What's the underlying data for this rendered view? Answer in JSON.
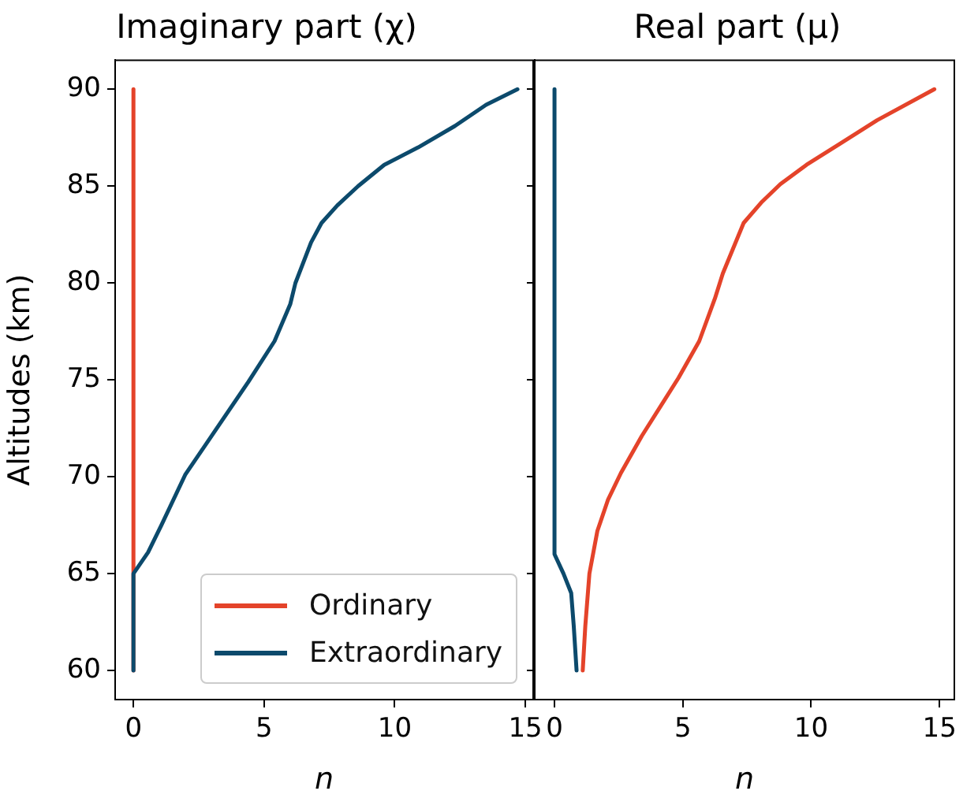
{
  "chart_data": [
    {
      "type": "line",
      "title": "Imaginary part (χ)",
      "xlabel": "n",
      "ylabel": "Altitudes (km)",
      "legend": "bottom right",
      "grid": false,
      "marker": "none",
      "line_style": "solid",
      "xlim": [
        -0.7,
        15.3
      ],
      "xticks": [
        0,
        5,
        10,
        15
      ],
      "ylim": [
        58.5,
        91.5
      ],
      "yticks": [
        60,
        65,
        70,
        75,
        80,
        85,
        90
      ],
      "series": [
        {
          "name": "Ordinary",
          "color": "#e4432a",
          "x": [
            0,
            0
          ],
          "values": [
            60,
            90
          ]
        },
        {
          "name": "Extraordinary",
          "color": "#0c4a6c",
          "x": [
            0,
            0,
            0.56,
            1.07,
            1.98,
            3.39,
            4.4,
            5.4,
            6.0,
            6.2,
            6.8,
            7.2,
            7.8,
            8.6,
            9.6,
            10.9,
            12.3,
            13.5,
            14.7
          ],
          "values": [
            60,
            65,
            66.1,
            67.5,
            70.1,
            72.9,
            74.9,
            77.0,
            78.9,
            80.0,
            82.1,
            83.1,
            84.0,
            85.0,
            86.1,
            87.0,
            88.1,
            89.2,
            90
          ]
        }
      ]
    },
    {
      "type": "line",
      "title": "Real part (μ)",
      "xlabel": "n",
      "legend": false,
      "grid": false,
      "marker": "none",
      "line_style": "solid",
      "tick_labels": "x",
      "xlim": [
        -0.77,
        15.58
      ],
      "xticks": [
        0,
        5,
        10,
        15
      ],
      "ylim": [
        58.5,
        91.5
      ],
      "yticks": [
        60,
        65,
        70,
        75,
        80,
        85,
        90
      ],
      "series": [
        {
          "color": "#e4432a",
          "x": [
            1.1,
            1.2,
            1.36,
            1.67,
            2.08,
            2.59,
            3.4,
            4.83,
            5.64,
            6.25,
            6.56,
            7.37,
            8.09,
            8.8,
            9.82,
            11.14,
            12.57,
            14.8
          ],
          "values": [
            60,
            62.3,
            65,
            67.2,
            68.8,
            70.2,
            72.1,
            75.1,
            77.0,
            79.2,
            80.5,
            83.1,
            84.2,
            85.1,
            86.1,
            87.2,
            88.4,
            90
          ]
        },
        {
          "color": "#0c4a6c",
          "x": [
            0.86,
            0.75,
            0.65,
            0.35,
            0,
            0
          ],
          "values": [
            60,
            62.3,
            64.0,
            65,
            66.0,
            90
          ]
        }
      ]
    }
  ]
}
